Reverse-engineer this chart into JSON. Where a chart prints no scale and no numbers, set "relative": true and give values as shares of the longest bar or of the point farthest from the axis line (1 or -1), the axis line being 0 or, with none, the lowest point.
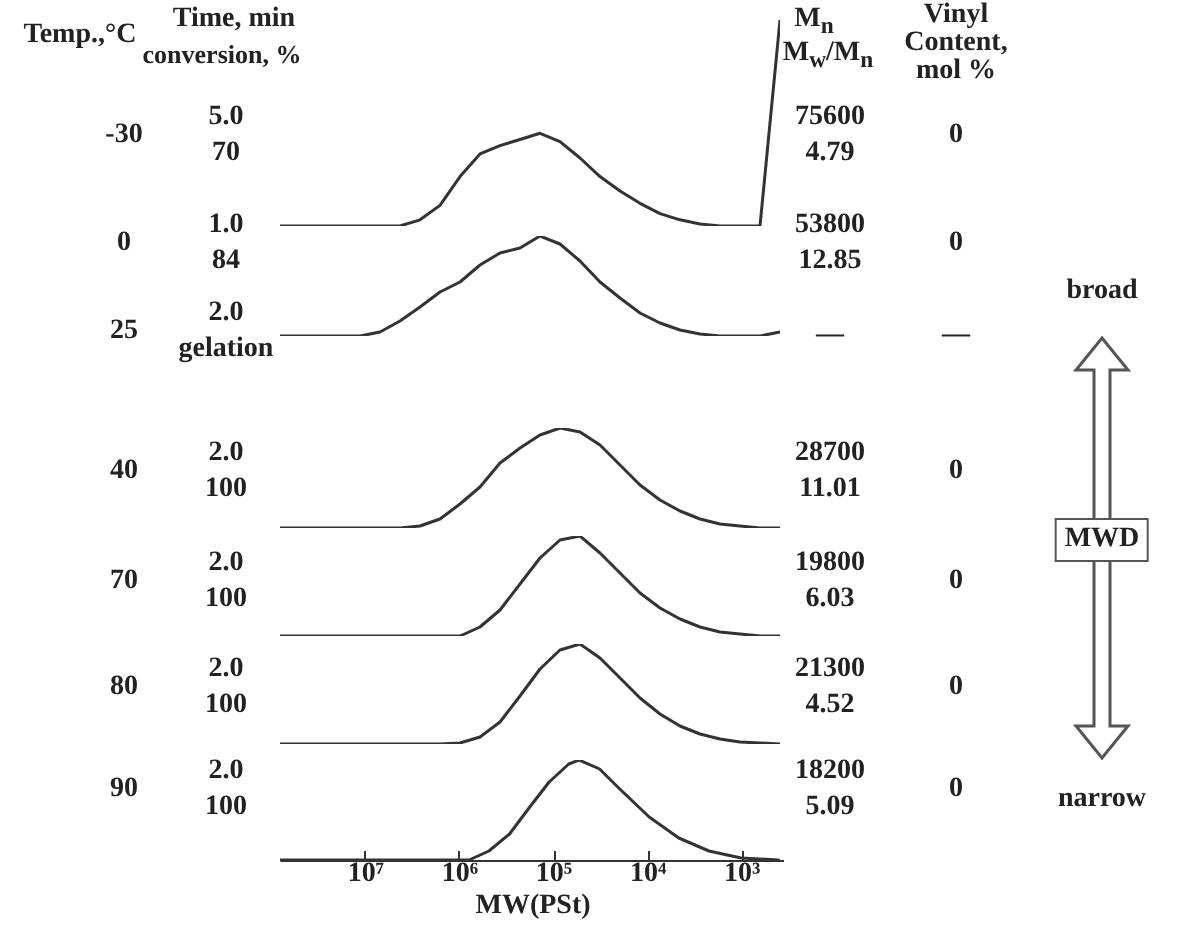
{
  "chart_data": [
    {
      "type": "other",
      "annotations": [
        "Temp.,°C",
        "Time, min",
        "conversion, %",
        "M$_{n}$",
        "M$_{w}$/M$_{n}$",
        "Vinyl Content, mol %",
        "broad",
        "MWD",
        "narrow"
      ]
    },
    {
      "type": "line",
      "relative": true,
      "tick_labels": false,
      "categories": [
        null,
        null,
        null,
        null,
        null,
        null,
        null,
        null,
        null,
        null,
        null,
        null,
        null,
        null,
        null,
        null,
        null,
        null,
        null,
        null,
        null,
        null,
        null,
        null,
        null,
        null
      ],
      "series": [
        {
          "color": "#333333",
          "values": [
            0,
            0,
            0,
            0,
            0,
            0,
            0,
            0.03,
            0.1,
            0.24,
            0.35,
            0.39,
            0.42,
            0.45,
            0.41,
            0.33,
            0.24,
            0.17,
            0.11,
            0.06,
            0.03,
            0.01,
            0,
            0,
            0,
            1
          ]
        }
      ],
      "annotations": [
        "-30",
        "5.0",
        "70",
        "75600",
        "4.79",
        "0"
      ]
    },
    {
      "type": "line",
      "relative": true,
      "tick_labels": false,
      "categories": [
        null,
        null,
        null,
        null,
        null,
        null,
        null,
        null,
        null,
        null,
        null,
        null,
        null,
        null,
        null,
        null,
        null,
        null,
        null,
        null,
        null,
        null,
        null,
        null,
        null,
        null
      ],
      "series": [
        {
          "color": "#333333",
          "values": [
            0,
            0,
            0,
            0,
            0,
            0.04,
            0.15,
            0.29,
            0.44,
            0.54,
            0.71,
            0.83,
            0.88,
            1,
            0.92,
            0.75,
            0.54,
            0.38,
            0.23,
            0.13,
            0.06,
            0.02,
            0,
            0,
            0,
            0.04
          ]
        }
      ],
      "annotations": [
        "0",
        "1.0",
        "84",
        "53800",
        "12.85",
        "0"
      ]
    },
    {
      "type": "other",
      "annotations": [
        "25",
        "2.0",
        "gelation",
        "—",
        "—"
      ]
    },
    {
      "type": "line",
      "relative": true,
      "tick_labels": false,
      "categories": [
        null,
        null,
        null,
        null,
        null,
        null,
        null,
        null,
        null,
        null,
        null,
        null,
        null,
        null,
        null,
        null,
        null,
        null,
        null,
        null,
        null,
        null,
        null,
        null,
        null,
        null
      ],
      "series": [
        {
          "color": "#333333",
          "values": [
            0,
            0,
            0,
            0,
            0,
            0,
            0,
            0.02,
            0.09,
            0.24,
            0.41,
            0.65,
            0.8,
            0.93,
            1,
            0.96,
            0.83,
            0.63,
            0.43,
            0.28,
            0.17,
            0.09,
            0.04,
            0.02,
            0,
            0
          ]
        }
      ],
      "annotations": [
        "40",
        "2.0",
        "100",
        "28700",
        "11.01",
        "0"
      ]
    },
    {
      "type": "line",
      "relative": true,
      "tick_labels": false,
      "categories": [
        null,
        null,
        null,
        null,
        null,
        null,
        null,
        null,
        null,
        null,
        null,
        null,
        null,
        null,
        null,
        null,
        null,
        null,
        null,
        null,
        null,
        null,
        null,
        null,
        null,
        null
      ],
      "series": [
        {
          "color": "#333333",
          "values": [
            0,
            0,
            0,
            0,
            0,
            0,
            0,
            0,
            0,
            0,
            0.09,
            0.26,
            0.52,
            0.78,
            0.96,
            1,
            0.83,
            0.63,
            0.43,
            0.28,
            0.17,
            0.09,
            0.04,
            0.02,
            0,
            0
          ]
        }
      ],
      "annotations": [
        "70",
        "2.0",
        "100",
        "19800",
        "6.03",
        "0"
      ]
    },
    {
      "type": "line",
      "relative": true,
      "tick_labels": false,
      "categories": [
        null,
        null,
        null,
        null,
        null,
        null,
        null,
        null,
        null,
        null,
        null,
        null,
        null,
        null,
        null,
        null,
        null,
        null,
        null,
        null,
        null,
        null,
        null,
        null,
        null,
        null
      ],
      "series": [
        {
          "color": "#333333",
          "values": [
            0,
            0,
            0,
            0,
            0,
            0,
            0,
            0,
            0,
            0.01,
            0.07,
            0.22,
            0.48,
            0.75,
            0.94,
            1,
            0.86,
            0.66,
            0.46,
            0.3,
            0.18,
            0.1,
            0.05,
            0.02,
            0.01,
            0
          ]
        }
      ],
      "annotations": [
        "80",
        "2.0",
        "100",
        "21300",
        "4.52",
        "0"
      ]
    },
    {
      "type": "line",
      "log": "x",
      "relative": true,
      "tick_labels": "x",
      "xlim": [
        80000000,
        350
      ],
      "xlabel": "MW(PSt)",
      "xticks": [
        {
          "value": 10000000,
          "label": "10⁷"
        },
        {
          "value": 1000000,
          "label": "10⁶"
        },
        {
          "value": 100000,
          "label": "10⁵"
        },
        {
          "value": 10000,
          "label": "10⁴"
        },
        {
          "value": 1000,
          "label": "10³"
        }
      ],
      "x": [
        80000000,
        780000,
        480000,
        290000,
        180000,
        110000,
        68000,
        53000,
        32000,
        20000,
        9500,
        4600,
        2200,
        1000,
        400
      ],
      "series": [
        {
          "color": "#333333",
          "values": [
            0,
            0,
            0.09,
            0.26,
            0.52,
            0.78,
            0.96,
            1,
            0.91,
            0.72,
            0.43,
            0.22,
            0.09,
            0.02,
            0
          ]
        }
      ],
      "annotations": [
        "90",
        "2.0",
        "100",
        "18200",
        "5.09",
        "0"
      ]
    }
  ]
}
